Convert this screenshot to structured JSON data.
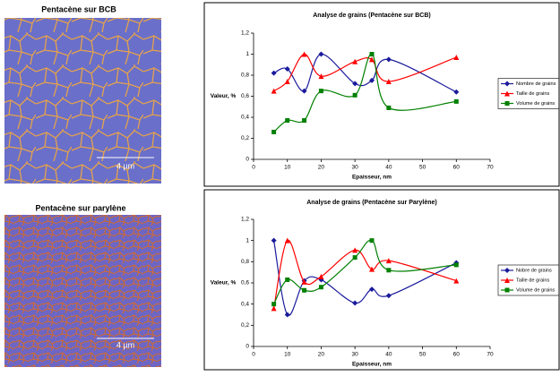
{
  "images": [
    {
      "title": "Pentacène sur BCB",
      "scale": "4 µm"
    },
    {
      "title": "Pentacène sur parylène",
      "scale": "4 µm"
    }
  ],
  "chart_data": [
    {
      "type": "line",
      "title": "Analyse de grains (Pentacène sur BCB)",
      "x_label": "Epaisseur, nm",
      "y_label": "Valeur, %",
      "x": [
        6,
        10,
        15,
        20,
        30,
        35,
        40,
        60
      ],
      "xlim": [
        0,
        70
      ],
      "xticks": [
        0,
        10,
        20,
        30,
        40,
        50,
        60,
        70
      ],
      "ylim": [
        0,
        1.2
      ],
      "yticks": [
        0,
        {
          "value": 0.2,
          "label": "0,2"
        },
        {
          "value": 0.4,
          "label": "0,4"
        },
        {
          "value": 0.6,
          "label": "0,6"
        },
        {
          "value": 0.8,
          "label": "0,8"
        },
        1,
        {
          "value": 1.2,
          "label": "1,2"
        }
      ],
      "legend": "right",
      "series": [
        {
          "name": "Nombre de grains",
          "color": "#1a1a9c",
          "marker": "diamond",
          "values": [
            0.82,
            0.86,
            0.65,
            1.0,
            0.72,
            0.75,
            0.95,
            0.64
          ]
        },
        {
          "name": "Taille de grains",
          "color": "#ff0000",
          "marker": "triangle",
          "values": [
            0.65,
            0.74,
            1.0,
            0.79,
            0.93,
            0.95,
            0.74,
            0.97
          ]
        },
        {
          "name": "Volume de grains",
          "color": "#008000",
          "marker": "square",
          "values": [
            0.26,
            0.37,
            0.37,
            0.65,
            0.61,
            1.0,
            0.49,
            0.55
          ]
        }
      ]
    },
    {
      "type": "line",
      "title": "Analyse de grains (Pentacène sur Parylène)",
      "x_label": "Epaisseur, nm",
      "y_label": "Valeur, %",
      "x": [
        6,
        10,
        15,
        20,
        30,
        35,
        40,
        60
      ],
      "xlim": [
        0,
        70
      ],
      "xticks": [
        0,
        10,
        20,
        30,
        40,
        50,
        60,
        70
      ],
      "ylim": [
        0,
        1.2
      ],
      "yticks": [
        0,
        {
          "value": 0.2,
          "label": "0,2"
        },
        {
          "value": 0.4,
          "label": "0,4"
        },
        {
          "value": 0.6,
          "label": "0,6"
        },
        {
          "value": 0.8,
          "label": "0,8"
        },
        1,
        {
          "value": 1.2,
          "label": "1,2"
        }
      ],
      "legend": "right",
      "series": [
        {
          "name": "Nobre de grains",
          "color": "#1a1a9c",
          "marker": "diamond",
          "values": [
            1.0,
            0.3,
            0.62,
            0.63,
            0.41,
            0.54,
            0.48,
            0.79
          ]
        },
        {
          "name": "Taille de grains",
          "color": "#ff0000",
          "marker": "triangle",
          "values": [
            0.36,
            1.0,
            0.61,
            0.66,
            0.91,
            0.73,
            0.81,
            0.62
          ]
        },
        {
          "name": "Volume de grains",
          "color": "#008000",
          "marker": "square",
          "values": [
            0.4,
            0.63,
            0.53,
            0.56,
            0.84,
            1.0,
            0.72,
            0.77
          ]
        }
      ]
    }
  ]
}
